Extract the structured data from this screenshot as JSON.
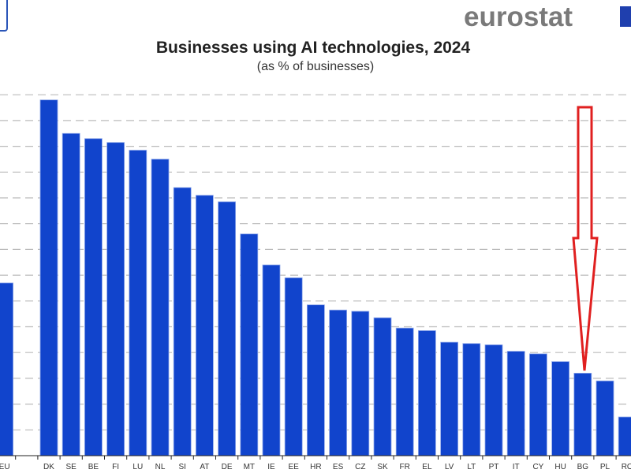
{
  "logo": {
    "text": "eurostat",
    "accent_color": "#1f3fae"
  },
  "chart_data": {
    "type": "bar",
    "title": "Businesses using AI technologies, 2024",
    "subtitle": "(as % of businesses)",
    "xlabel": "",
    "ylabel": "",
    "ylim": [
      0,
      28
    ],
    "grid": true,
    "grid_step": 2,
    "bar_color": "#1144cc",
    "categories": [
      "EU",
      "",
      "DK",
      "SE",
      "BE",
      "FI",
      "LU",
      "NL",
      "SI",
      "AT",
      "DE",
      "MT",
      "IE",
      "EE",
      "HR",
      "ES",
      "CZ",
      "SK",
      "FR",
      "EL",
      "LV",
      "LT",
      "PT",
      "IT",
      "CY",
      "HU",
      "BG",
      "PL",
      "RO"
    ],
    "values": [
      13.4,
      null,
      27.6,
      25.0,
      24.6,
      24.3,
      23.7,
      23.0,
      20.8,
      20.2,
      19.7,
      17.2,
      14.8,
      13.8,
      11.7,
      11.3,
      11.2,
      10.7,
      9.9,
      9.7,
      8.8,
      8.7,
      8.6,
      8.1,
      7.9,
      7.3,
      6.4,
      5.8,
      3.0
    ],
    "annotation": {
      "type": "arrow",
      "color": "#e02020",
      "points_to": "BG"
    }
  }
}
